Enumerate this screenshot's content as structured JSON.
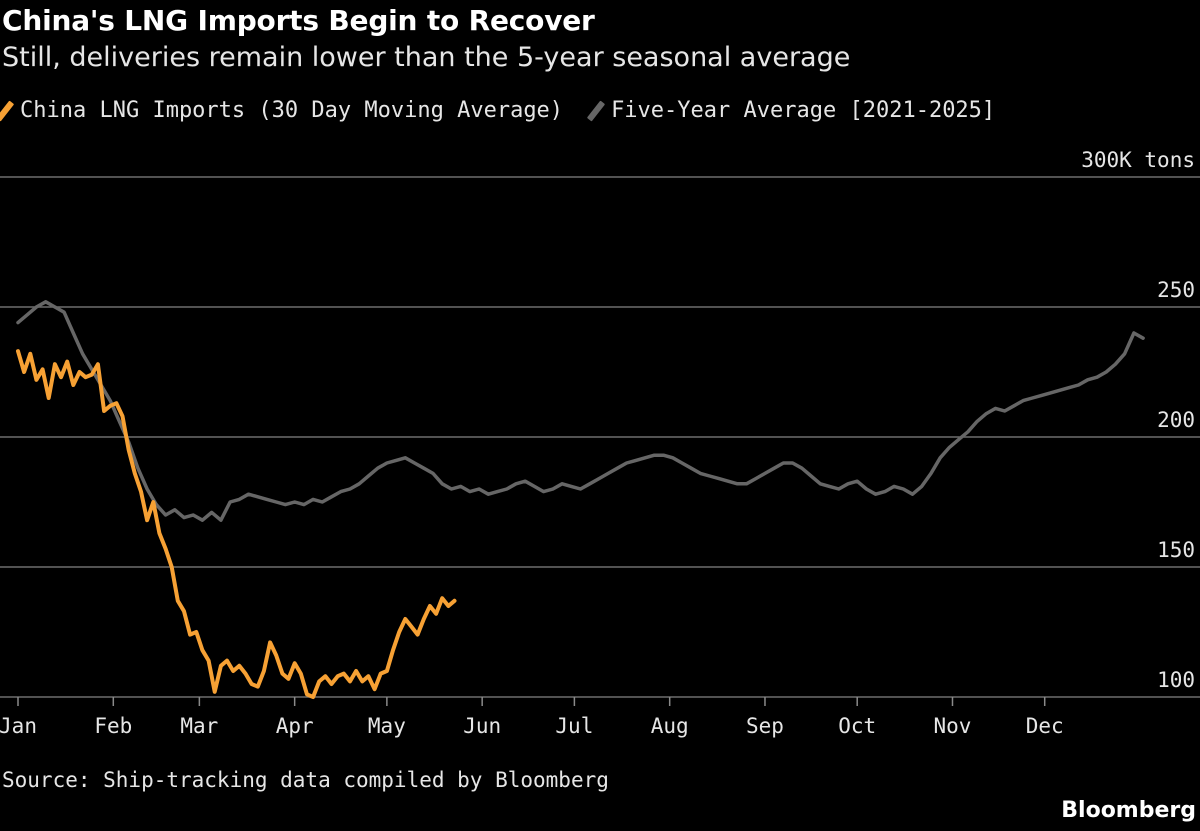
{
  "header": {
    "title": "China's LNG Imports Begin to Recover",
    "subtitle": "Still, deliveries remain lower than the 5-year seasonal average"
  },
  "footer": {
    "source": "Source: Ship-tracking data compiled by Bloomberg",
    "brand": "Bloomberg"
  },
  "chart_data": {
    "type": "line",
    "title": "China's LNG Imports Begin to Recover",
    "subtitle": "Still, deliveries remain lower than the 5-year seasonal average",
    "ylabel": "300K tons",
    "ylim": [
      100,
      300
    ],
    "yticks": [
      100,
      150,
      200,
      250,
      300
    ],
    "ytick_labels": [
      "100",
      "150",
      "200",
      "250",
      "300K tons"
    ],
    "xlim": [
      0,
      365
    ],
    "x_unit": "day of year",
    "x_ticks": [
      {
        "day": 1,
        "label": "Jan"
      },
      {
        "day": 32,
        "label": "Feb"
      },
      {
        "day": 60,
        "label": "Mar"
      },
      {
        "day": 91,
        "label": "Apr"
      },
      {
        "day": 121,
        "label": "May"
      },
      {
        "day": 152,
        "label": "Jun"
      },
      {
        "day": 182,
        "label": "Jul"
      },
      {
        "day": 213,
        "label": "Aug"
      },
      {
        "day": 244,
        "label": "Sep"
      },
      {
        "day": 274,
        "label": "Oct"
      },
      {
        "day": 305,
        "label": "Nov"
      },
      {
        "day": 335,
        "label": "Dec"
      }
    ],
    "grid": true,
    "legend_position": "top-left",
    "series": [
      {
        "name": "China LNG Imports (30 Day Moving Average)",
        "color": "#f7a134",
        "x": [
          0,
          2,
          4,
          6,
          8,
          10,
          12,
          14,
          16,
          18,
          20,
          22,
          24,
          26,
          28,
          30,
          32,
          34,
          36,
          38,
          40,
          42,
          44,
          46,
          48,
          50,
          52,
          54,
          56,
          58,
          60,
          62,
          64,
          66,
          68,
          70,
          72,
          74,
          76,
          78,
          80,
          82,
          84,
          86,
          88,
          90,
          92,
          94,
          96,
          98,
          100,
          102,
          104,
          106,
          108,
          110,
          112,
          114,
          116,
          118,
          120,
          122,
          124,
          126,
          128,
          130,
          132,
          134,
          136,
          138,
          140,
          142
        ],
        "values": [
          233,
          225,
          232,
          222,
          226,
          215,
          228,
          223,
          229,
          220,
          225,
          223,
          224,
          228,
          210,
          212,
          213,
          208,
          195,
          186,
          179,
          168,
          175,
          163,
          157,
          150,
          137,
          133,
          124,
          125,
          118,
          114,
          102,
          112,
          114,
          110,
          112,
          109,
          105,
          104,
          110,
          121,
          116,
          109,
          107,
          113,
          109,
          101,
          100,
          106,
          108,
          105,
          108,
          109,
          106,
          110,
          106,
          108,
          103,
          109,
          110,
          118,
          125,
          130,
          127,
          124,
          130,
          135,
          132,
          138,
          135,
          137
        ]
      },
      {
        "name": "Five-Year Average [2021-2025]",
        "color": "#666666",
        "x": [
          0,
          3,
          6,
          9,
          12,
          15,
          18,
          21,
          24,
          27,
          30,
          33,
          36,
          39,
          42,
          45,
          48,
          51,
          54,
          57,
          60,
          63,
          66,
          69,
          72,
          75,
          78,
          81,
          84,
          87,
          90,
          93,
          96,
          99,
          102,
          105,
          108,
          111,
          114,
          117,
          120,
          123,
          126,
          129,
          132,
          135,
          138,
          141,
          144,
          147,
          150,
          153,
          156,
          159,
          162,
          165,
          168,
          171,
          174,
          177,
          180,
          183,
          186,
          189,
          192,
          195,
          198,
          201,
          204,
          207,
          210,
          213,
          216,
          219,
          222,
          225,
          228,
          231,
          234,
          237,
          240,
          243,
          246,
          249,
          252,
          255,
          258,
          261,
          264,
          267,
          270,
          273,
          276,
          279,
          282,
          285,
          288,
          291,
          294,
          297,
          300,
          303,
          306,
          309,
          312,
          315,
          318,
          321,
          324,
          327,
          330,
          333,
          336,
          339,
          342,
          345,
          348,
          351,
          354,
          357,
          360,
          363,
          366
        ],
        "values": [
          244,
          247,
          250,
          252,
          250,
          248,
          240,
          232,
          226,
          220,
          214,
          206,
          198,
          188,
          180,
          174,
          170,
          172,
          169,
          170,
          168,
          171,
          168,
          175,
          176,
          178,
          177,
          176,
          175,
          174,
          175,
          174,
          176,
          175,
          177,
          179,
          180,
          182,
          185,
          188,
          190,
          191,
          192,
          190,
          188,
          186,
          182,
          180,
          181,
          179,
          180,
          178,
          179,
          180,
          182,
          183,
          181,
          179,
          180,
          182,
          181,
          180,
          182,
          184,
          186,
          188,
          190,
          191,
          192,
          193,
          193,
          192,
          190,
          188,
          186,
          185,
          184,
          183,
          182,
          182,
          184,
          186,
          188,
          190,
          190,
          188,
          185,
          182,
          181,
          180,
          182,
          183,
          180,
          178,
          179,
          181,
          180,
          178,
          181,
          186,
          192,
          196,
          199,
          202,
          206,
          209,
          211,
          210,
          212,
          214,
          215,
          216,
          217,
          218,
          219,
          220,
          222,
          223,
          225,
          228,
          232,
          240,
          238
        ]
      }
    ]
  }
}
